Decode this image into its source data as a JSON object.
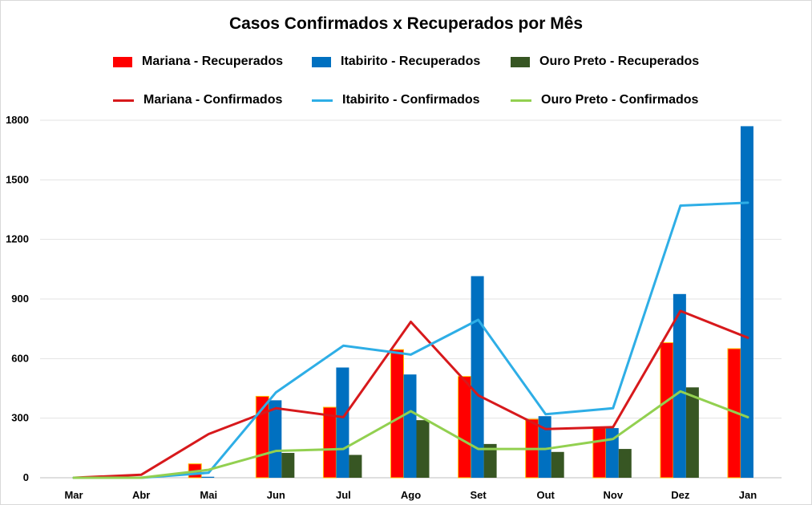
{
  "chart_data": {
    "type": "bar",
    "title": "Casos Confirmados x Recuperados por Mês",
    "xlabel": "",
    "ylabel": "",
    "categories": [
      "Mar",
      "Abr",
      "Mai",
      "Jun",
      "Jul",
      "Ago",
      "Set",
      "Out",
      "Nov",
      "Dez",
      "Jan"
    ],
    "ylim": [
      0,
      1800
    ],
    "yticks": [
      "0",
      "300",
      "600",
      "900",
      "1200",
      "1500",
      "1800"
    ],
    "grid": true,
    "legend_position": "top",
    "bar_series": [
      {
        "name": "Mariana - Recuperados",
        "color": "#ff0000",
        "values": [
          0,
          0,
          70,
          410,
          355,
          645,
          510,
          295,
          255,
          680,
          650
        ]
      },
      {
        "name": "Itabirito - Recuperados",
        "color": "#0070c0",
        "values": [
          0,
          0,
          5,
          390,
          555,
          520,
          1015,
          310,
          250,
          925,
          1770
        ]
      },
      {
        "name": "Ouro Preto - Recuperados",
        "color": "#375623",
        "values": [
          0,
          0,
          0,
          125,
          115,
          290,
          170,
          130,
          145,
          455,
          0
        ]
      }
    ],
    "line_series": [
      {
        "name": "Mariana - Confirmados",
        "color": "#d7191c",
        "values": [
          0,
          15,
          220,
          350,
          305,
          785,
          415,
          245,
          255,
          840,
          705
        ]
      },
      {
        "name": "Itabirito - Confirmados",
        "color": "#2eaee6",
        "values": [
          0,
          0,
          25,
          430,
          665,
          620,
          795,
          320,
          350,
          1370,
          1385
        ]
      },
      {
        "name": "Ouro Preto - Confirmados",
        "color": "#92d050",
        "values": [
          0,
          0,
          40,
          135,
          145,
          335,
          145,
          145,
          195,
          435,
          305
        ]
      }
    ]
  }
}
